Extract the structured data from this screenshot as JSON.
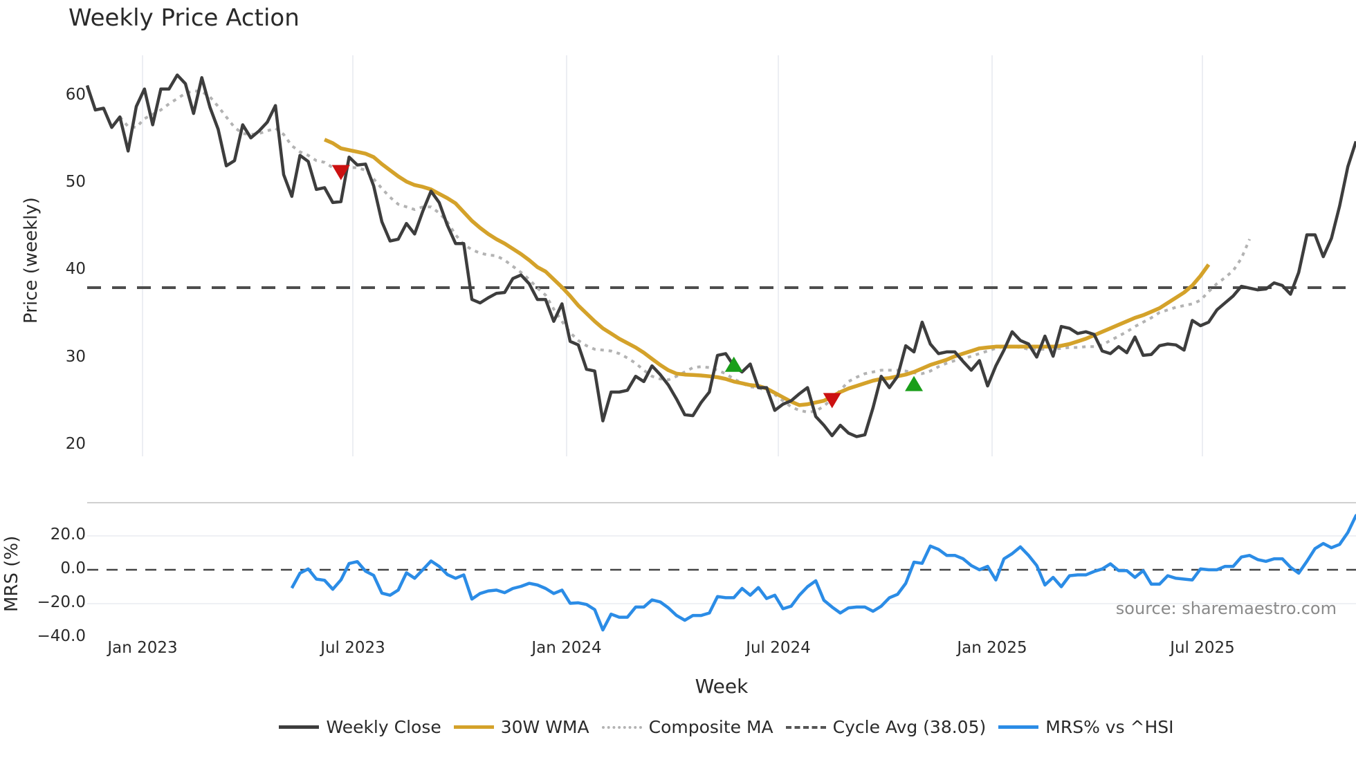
{
  "title": "Weekly Price Action",
  "source": "source: sharemaestro.com",
  "legend": [
    {
      "label": "Weekly Close",
      "color": "#3d3d3d",
      "style": "solid"
    },
    {
      "label": "30W WMA",
      "color": "#d4a22a",
      "style": "solid"
    },
    {
      "label": "Composite MA",
      "color": "#b3b3b3",
      "style": "dotted"
    },
    {
      "label": "Cycle Avg (38.05)",
      "color": "#555555",
      "style": "dashed"
    },
    {
      "label": "MRS% vs ^HSI",
      "color": "#2b8ce6",
      "style": "solid"
    }
  ],
  "chart_data": [
    {
      "type": "line",
      "title": "Weekly Price Action",
      "xlabel": "Week",
      "ylabel": "Price (weekly)",
      "ylim": [
        19,
        65
      ],
      "yticks": [
        20,
        30,
        40,
        50,
        60
      ],
      "xticks": [
        "Jan 2023",
        "Jul 2023",
        "Jan 2024",
        "Jul 2024",
        "Jan 2025",
        "Jul 2025"
      ],
      "grid": true,
      "x_start_week_offset": -7,
      "series": [
        {
          "name": "Weekly Close",
          "color": "#3d3d3d",
          "values": [
            61.2,
            58.4,
            58.6,
            56.4,
            57.6,
            53.7,
            58.8,
            60.8,
            56.7,
            60.8,
            60.8,
            62.4,
            61.4,
            58.0,
            62.1,
            58.7,
            56.2,
            52.0,
            52.6,
            56.7,
            55.2,
            56.0,
            57.0,
            58.9,
            51.0,
            48.5,
            53.2,
            52.5,
            49.3,
            49.5,
            47.8,
            47.9,
            53.0,
            52.1,
            52.2,
            49.7,
            45.6,
            43.4,
            43.6,
            45.4,
            44.2,
            46.8,
            49.1,
            47.8,
            45.2,
            43.1,
            43.1,
            36.7,
            36.3,
            36.9,
            37.4,
            37.5,
            39.1,
            39.5,
            38.5,
            36.7,
            36.7,
            34.2,
            36.2,
            31.9,
            31.5,
            28.7,
            28.5,
            22.8,
            26.1,
            26.1,
            26.3,
            27.9,
            27.3,
            29.1,
            28.1,
            26.9,
            25.3,
            23.5,
            23.4,
            24.9,
            26.1,
            30.3,
            30.5,
            29.1,
            28.4,
            29.3,
            26.6,
            26.6,
            24.0,
            24.7,
            25.1,
            25.9,
            26.6,
            23.3,
            22.3,
            21.1,
            22.3,
            21.4,
            21.0,
            21.2,
            24.3,
            27.9,
            26.6,
            27.9,
            31.4,
            30.7,
            34.1,
            31.6,
            30.5,
            30.7,
            30.7,
            29.6,
            28.6,
            29.7,
            26.8,
            29.1,
            30.9,
            33.0,
            32.0,
            31.6,
            30.1,
            32.5,
            30.2,
            33.6,
            33.4,
            32.8,
            33.0,
            32.7,
            30.8,
            30.5,
            31.3,
            30.6,
            32.4,
            30.3,
            30.4,
            31.4,
            31.6,
            31.5,
            30.9,
            34.3,
            33.7,
            34.1,
            35.5,
            36.3,
            37.1,
            38.2,
            38.0,
            37.8,
            37.9,
            38.6,
            38.3,
            37.3,
            39.8,
            44.1,
            44.1,
            41.6,
            43.7,
            47.4,
            51.9,
            54.8
          ]
        },
        {
          "name": "30W WMA",
          "color": "#d4a22a",
          "start_index": 29,
          "values": [
            55.0,
            54.6,
            54.0,
            53.8,
            53.6,
            53.4,
            53.0,
            52.2,
            51.5,
            50.8,
            50.2,
            49.8,
            49.6,
            49.3,
            48.8,
            48.3,
            47.7,
            46.7,
            45.7,
            44.9,
            44.2,
            43.6,
            43.1,
            42.5,
            41.9,
            41.2,
            40.4,
            39.9,
            39.0,
            38.1,
            37.1,
            36.0,
            35.1,
            34.2,
            33.4,
            32.8,
            32.2,
            31.7,
            31.2,
            30.6,
            29.9,
            29.2,
            28.6,
            28.2,
            28.1,
            28.05,
            28.0,
            27.9,
            27.8,
            27.6,
            27.3,
            27.1,
            26.9,
            26.8,
            26.5,
            26.0,
            25.5,
            25.0,
            24.6,
            24.7,
            24.9,
            25.1,
            25.6,
            26.1,
            26.5,
            26.8,
            27.1,
            27.4,
            27.6,
            27.7,
            27.9,
            28.1,
            28.4,
            28.8,
            29.2,
            29.5,
            29.8,
            30.2,
            30.5,
            30.8,
            31.1,
            31.2,
            31.3,
            31.3,
            31.3,
            31.3,
            31.3,
            31.3,
            31.3,
            31.3,
            31.4,
            31.6,
            31.9,
            32.2,
            32.6,
            33.0,
            33.4,
            33.8,
            34.2,
            34.6,
            34.9,
            35.3,
            35.7,
            36.3,
            36.9,
            37.5,
            38.3,
            39.4,
            40.7
          ]
        },
        {
          "name": "Composite MA",
          "color": "#b3b3b3",
          "start_index": 4,
          "values": [
            57.6,
            56.5,
            56.4,
            57.4,
            57.9,
            58.4,
            59.1,
            59.7,
            60.3,
            60.6,
            60.5,
            59.9,
            58.8,
            57.6,
            56.4,
            55.7,
            55.6,
            55.7,
            56.0,
            56.3,
            55.6,
            54.3,
            53.6,
            53.2,
            52.6,
            52.4,
            51.8,
            51.6,
            51.8,
            51.8,
            51.5,
            50.5,
            49.4,
            48.4,
            47.6,
            47.3,
            47.0,
            47.3,
            47.3,
            46.6,
            45.6,
            44.1,
            43.0,
            42.4,
            42.0,
            41.8,
            41.7,
            41.2,
            40.5,
            39.8,
            39.0,
            38.0,
            37.2,
            35.6,
            34.2,
            32.9,
            32.0,
            31.4,
            31.0,
            30.9,
            30.8,
            30.5,
            30.0,
            29.4,
            28.6,
            27.9,
            27.6,
            27.5,
            27.9,
            28.4,
            28.9,
            29.0,
            28.9,
            28.6,
            28.2,
            27.6,
            27.1,
            26.7,
            26.6,
            26.2,
            25.8,
            25.1,
            24.4,
            24.0,
            23.8,
            23.9,
            24.5,
            25.3,
            26.3,
            27.3,
            27.8,
            28.2,
            28.4,
            28.6,
            28.6,
            28.6,
            28.5,
            28.3,
            28.2,
            28.5,
            29.0,
            29.4,
            29.7,
            29.9,
            30.2,
            30.5,
            30.8,
            31.1,
            31.3,
            31.3,
            31.2,
            31.0,
            31.0,
            31.0,
            31.0,
            31.1,
            31.2,
            31.2,
            31.3,
            31.3,
            31.5,
            32.0,
            32.5,
            33.0,
            33.6,
            34.1,
            34.6,
            35.2,
            35.5,
            35.8,
            36.0,
            36.2,
            36.6,
            37.6,
            38.5,
            39.2,
            40.0,
            41.4,
            43.6
          ]
        },
        {
          "name": "Cycle Avg (38.05)",
          "color": "#555555",
          "constant": 38.05
        }
      ],
      "markers": [
        {
          "type": "sell",
          "shape": "triangle-down",
          "color": "#cc1111",
          "index": 31,
          "value": 51.3
        },
        {
          "type": "buy",
          "shape": "triangle-up",
          "color": "#1a9e1a",
          "index": 79,
          "value": 29.2
        },
        {
          "type": "sell",
          "shape": "triangle-down",
          "color": "#cc1111",
          "index": 91,
          "value": 25.2
        },
        {
          "type": "buy",
          "shape": "triangle-up",
          "color": "#1a9e1a",
          "index": 101,
          "value": 27.0
        }
      ]
    },
    {
      "type": "line",
      "ylabel": "MRS (%)",
      "ylim": [
        -40,
        38
      ],
      "yticks": [
        "20.0",
        "0.0",
        "-20.0",
        "-40.0"
      ],
      "reference_line": 0.0,
      "series": [
        {
          "name": "MRS% vs ^HSI",
          "color": "#2b8ce6",
          "start_index": 25,
          "values": [
            -10.8,
            -2.0,
            0.5,
            -5.5,
            -6.2,
            -11.5,
            -6.0,
            3.7,
            4.8,
            -0.8,
            -3.3,
            -13.8,
            -15.0,
            -12.0,
            -1.8,
            -5.0,
            0.0,
            5.2,
            2.0,
            -2.8,
            -5.0,
            -3.0,
            -17.3,
            -14.0,
            -12.5,
            -12.0,
            -13.5,
            -11.0,
            -9.8,
            -8.0,
            -9.0,
            -11.0,
            -14.0,
            -12.0,
            -19.8,
            -19.5,
            -20.5,
            -23.5,
            -35.5,
            -26.2,
            -28.0,
            -28.0,
            -22.0,
            -22.0,
            -17.8,
            -19.0,
            -22.5,
            -27.0,
            -29.8,
            -27.0,
            -27.0,
            -25.5,
            -15.8,
            -16.5,
            -16.5,
            -11.0,
            -15.0,
            -10.5,
            -17.0,
            -15.0,
            -23.0,
            -21.5,
            -15.0,
            -10.0,
            -6.5,
            -18.0,
            -22.0,
            -25.5,
            -22.5,
            -22.0,
            -22.0,
            -24.5,
            -21.5,
            -16.5,
            -14.5,
            -8.0,
            4.5,
            3.8,
            14.0,
            12.0,
            8.5,
            8.5,
            6.5,
            2.5,
            0.0,
            2.0,
            -6.0,
            6.5,
            9.5,
            13.5,
            8.5,
            2.5,
            -9.0,
            -4.5,
            -10.0,
            -3.5,
            -3.0,
            -3.0,
            -1.0,
            0.5,
            3.5,
            -0.5,
            -0.5,
            -4.5,
            -0.5,
            -8.5,
            -8.5,
            -3.5,
            -5.0,
            -5.5,
            -6.0,
            0.5,
            0.0,
            0.0,
            2.0,
            2.0,
            7.5,
            8.5,
            6.0,
            5.0,
            6.5,
            6.5,
            1.5,
            -2.0,
            5.0,
            12.5,
            15.5,
            13.0,
            15.0,
            22.0,
            32.0,
            34.0
          ]
        }
      ]
    }
  ]
}
